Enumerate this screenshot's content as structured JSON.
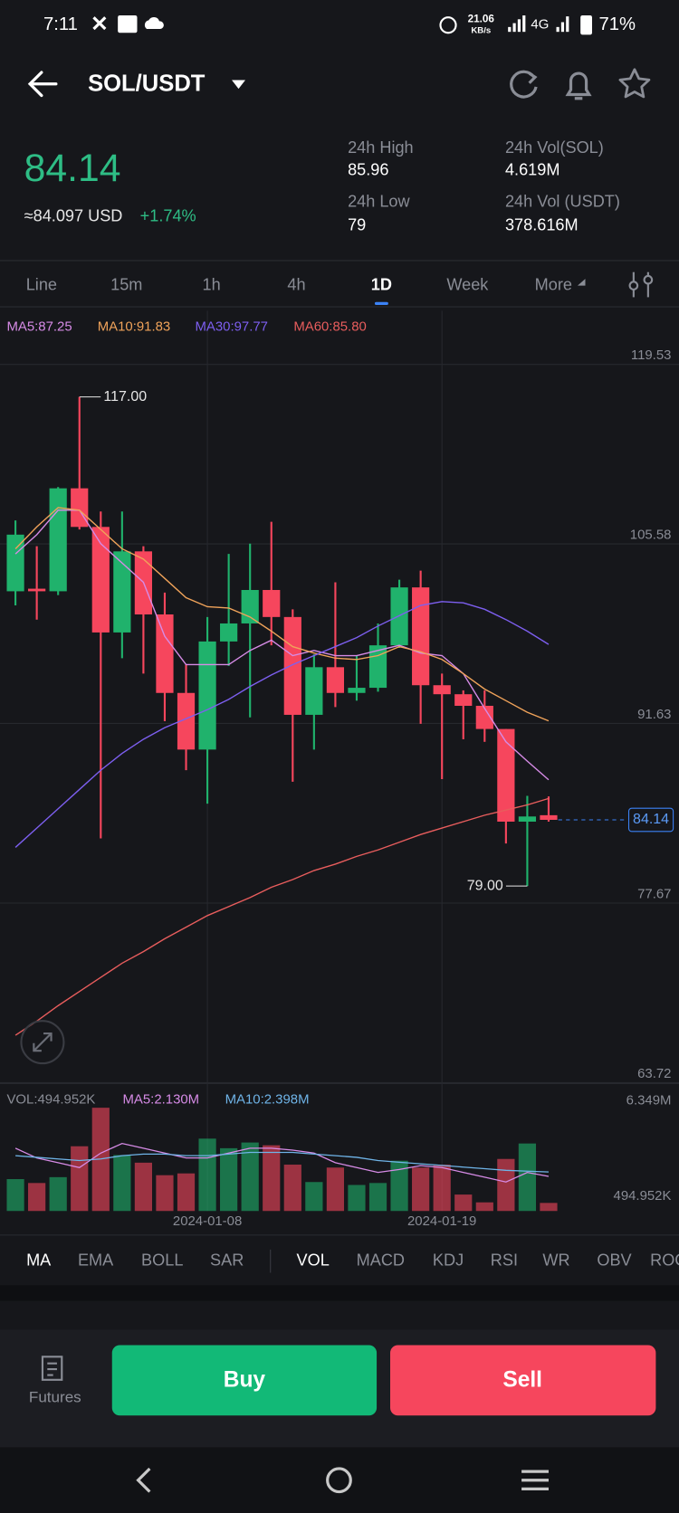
{
  "status_bar": {
    "time": "7:11",
    "net_speed": "21.06",
    "net_unit": "KB/s",
    "network": "4G",
    "battery": "71%"
  },
  "header": {
    "pair": "SOL/USDT"
  },
  "ticker": {
    "price": "84.14",
    "usd_price": "≈84.097 USD",
    "change": "+1.74%",
    "stats": [
      {
        "label": "24h High",
        "value": "85.96"
      },
      {
        "label": "24h Low",
        "value": "79"
      },
      {
        "label": "24h Vol(SOL)",
        "value": "4.619M"
      },
      {
        "label": "24h Vol (USDT)",
        "value": "378.616M"
      }
    ]
  },
  "intervals": {
    "items": [
      "Line",
      "15m",
      "1h",
      "4h",
      "1D",
      "Week",
      "More"
    ],
    "active": 4
  },
  "chart_data": {
    "type": "candlestick",
    "categories": [
      null,
      null,
      null,
      null,
      null,
      null,
      null,
      null,
      null,
      "2024-01-08",
      null,
      null,
      null,
      null,
      null,
      null,
      null,
      null,
      null,
      null,
      "2024-01-19",
      null,
      null,
      null,
      null,
      null
    ],
    "open": [
      101.9,
      102.1,
      101.9,
      109.9,
      106.9,
      98.7,
      105.0,
      100.1,
      94.0,
      89.6,
      98.0,
      99.4,
      102.0,
      99.9,
      92.3,
      96.0,
      94.0,
      94.4,
      97.7,
      102.2,
      94.6,
      93.9,
      93.0,
      91.2,
      84.0,
      84.5
    ],
    "high": [
      107.4,
      105.4,
      110.0,
      117.0,
      108.1,
      108.1,
      105.4,
      101.8,
      96.2,
      99.9,
      104.8,
      105.6,
      107.3,
      100.5,
      97.0,
      102.6,
      96.9,
      99.4,
      102.8,
      103.5,
      95.5,
      94.2,
      94.2,
      91.2,
      86.0,
      85.96
    ],
    "low": [
      100.8,
      99.7,
      101.6,
      106.7,
      82.7,
      96.7,
      95.5,
      91.8,
      88.0,
      85.4,
      96.1,
      92.1,
      97.7,
      87.1,
      89.6,
      92.9,
      93.4,
      94.1,
      97.5,
      91.6,
      87.3,
      90.4,
      90.2,
      82.3,
      79.0,
      84.0
    ],
    "close": [
      106.3,
      101.9,
      109.9,
      106.9,
      98.7,
      105.0,
      100.1,
      94.0,
      89.6,
      98.0,
      99.4,
      102.0,
      99.9,
      92.3,
      96.0,
      94.0,
      94.4,
      97.7,
      102.2,
      94.6,
      93.9,
      93.0,
      91.2,
      84.0,
      84.4,
      84.14
    ],
    "up_color": "#20b26c",
    "down_color": "#f6465d",
    "ylim": [
      63.72,
      123.7
    ],
    "yticks": [
      119.53,
      105.58,
      91.63,
      77.67,
      63.72
    ],
    "grid": true,
    "ma_series": [
      {
        "name": "MA5:87.25",
        "color": "#d68be6",
        "values": [
          104.8,
          106.3,
          108.2,
          108.2,
          105.6,
          104.1,
          102.6,
          98.4,
          96.2,
          96.2,
          96.2,
          97.3,
          98.1,
          96.9,
          97.3,
          96.9,
          96.9,
          97.3,
          97.7,
          97.1,
          96.9,
          95.5,
          92.8,
          90.2,
          88.7,
          87.25
        ]
      },
      {
        "name": "MA10:91.83",
        "color": "#f0a35a",
        "values": [
          105.2,
          106.9,
          108.4,
          108.2,
          106.7,
          105.2,
          104.4,
          102.9,
          101.4,
          100.7,
          100.6,
          99.9,
          98.8,
          97.6,
          97.1,
          96.7,
          96.6,
          96.9,
          97.6,
          97.2,
          96.6,
          95.5,
          94.3,
          93.4,
          92.5,
          91.83
        ]
      },
      {
        "name": "MA30:97.77",
        "color": "#7d5ff0",
        "values": [
          82.0,
          83.5,
          85.0,
          86.5,
          88.0,
          89.3,
          90.4,
          91.3,
          92.0,
          92.7,
          93.5,
          94.5,
          95.4,
          96.2,
          96.9,
          97.6,
          98.3,
          99.2,
          100.0,
          100.8,
          101.1,
          101.0,
          100.5,
          99.7,
          98.8,
          97.77
        ]
      },
      {
        "name": "MA60:85.80",
        "color": "#e85d5d",
        "values": [
          67.4,
          68.5,
          69.7,
          70.8,
          71.9,
          73.0,
          73.9,
          74.9,
          75.8,
          76.7,
          77.4,
          78.1,
          78.9,
          79.5,
          80.2,
          80.7,
          81.3,
          81.8,
          82.4,
          83.0,
          83.5,
          84.0,
          84.5,
          84.9,
          85.3,
          85.8
        ]
      }
    ],
    "high_label": "117.00",
    "low_label": "79.00",
    "last_price_label": "84.14",
    "volume": {
      "legend": "VOL:494.952K",
      "values": [
        1960000,
        1720000,
        2080000,
        3980000,
        6349000,
        3440000,
        2970000,
        2200000,
        2310000,
        4450000,
        3860000,
        4210000,
        4040000,
        2850000,
        1780000,
        2670000,
        1600000,
        1720000,
        3090000,
        2670000,
        2850000,
        1010000,
        530000,
        3200000,
        4150000,
        494952
      ],
      "ylim": [
        0,
        7714000
      ],
      "yticks": [
        {
          "value": 6349000,
          "label": "6.349M"
        },
        {
          "value": 494952,
          "label": "494.952K"
        }
      ],
      "ma_series": [
        {
          "name": "MA5:2.130M",
          "color": "#d68be6",
          "values": [
            3860000,
            3260000,
            2970000,
            2670000,
            3560000,
            4150000,
            3860000,
            3560000,
            3260000,
            3260000,
            3560000,
            3860000,
            3860000,
            3740000,
            3560000,
            2970000,
            2670000,
            2370000,
            2550000,
            2790000,
            2670000,
            2370000,
            2080000,
            1780000,
            2370000,
            2130000
          ]
        },
        {
          "name": "MA10:2.398M",
          "color": "#6fb4e8",
          "values": [
            3400000,
            3300000,
            3200000,
            3100000,
            3200000,
            3400000,
            3500000,
            3500000,
            3400000,
            3400000,
            3500000,
            3600000,
            3600000,
            3600000,
            3500000,
            3400000,
            3300000,
            3100000,
            3000000,
            2900000,
            2800000,
            2700000,
            2600000,
            2500000,
            2450000,
            2398000
          ]
        }
      ]
    }
  },
  "indicators": {
    "main": [
      "MA",
      "EMA",
      "BOLL",
      "SAR"
    ],
    "sub": [
      "VOL",
      "MACD",
      "KDJ",
      "RSI",
      "WR",
      "OBV",
      "ROC"
    ],
    "active_main": 0,
    "active_sub": 0
  },
  "actions": {
    "futures": "Futures",
    "buy": "Buy",
    "sell": "Sell"
  }
}
